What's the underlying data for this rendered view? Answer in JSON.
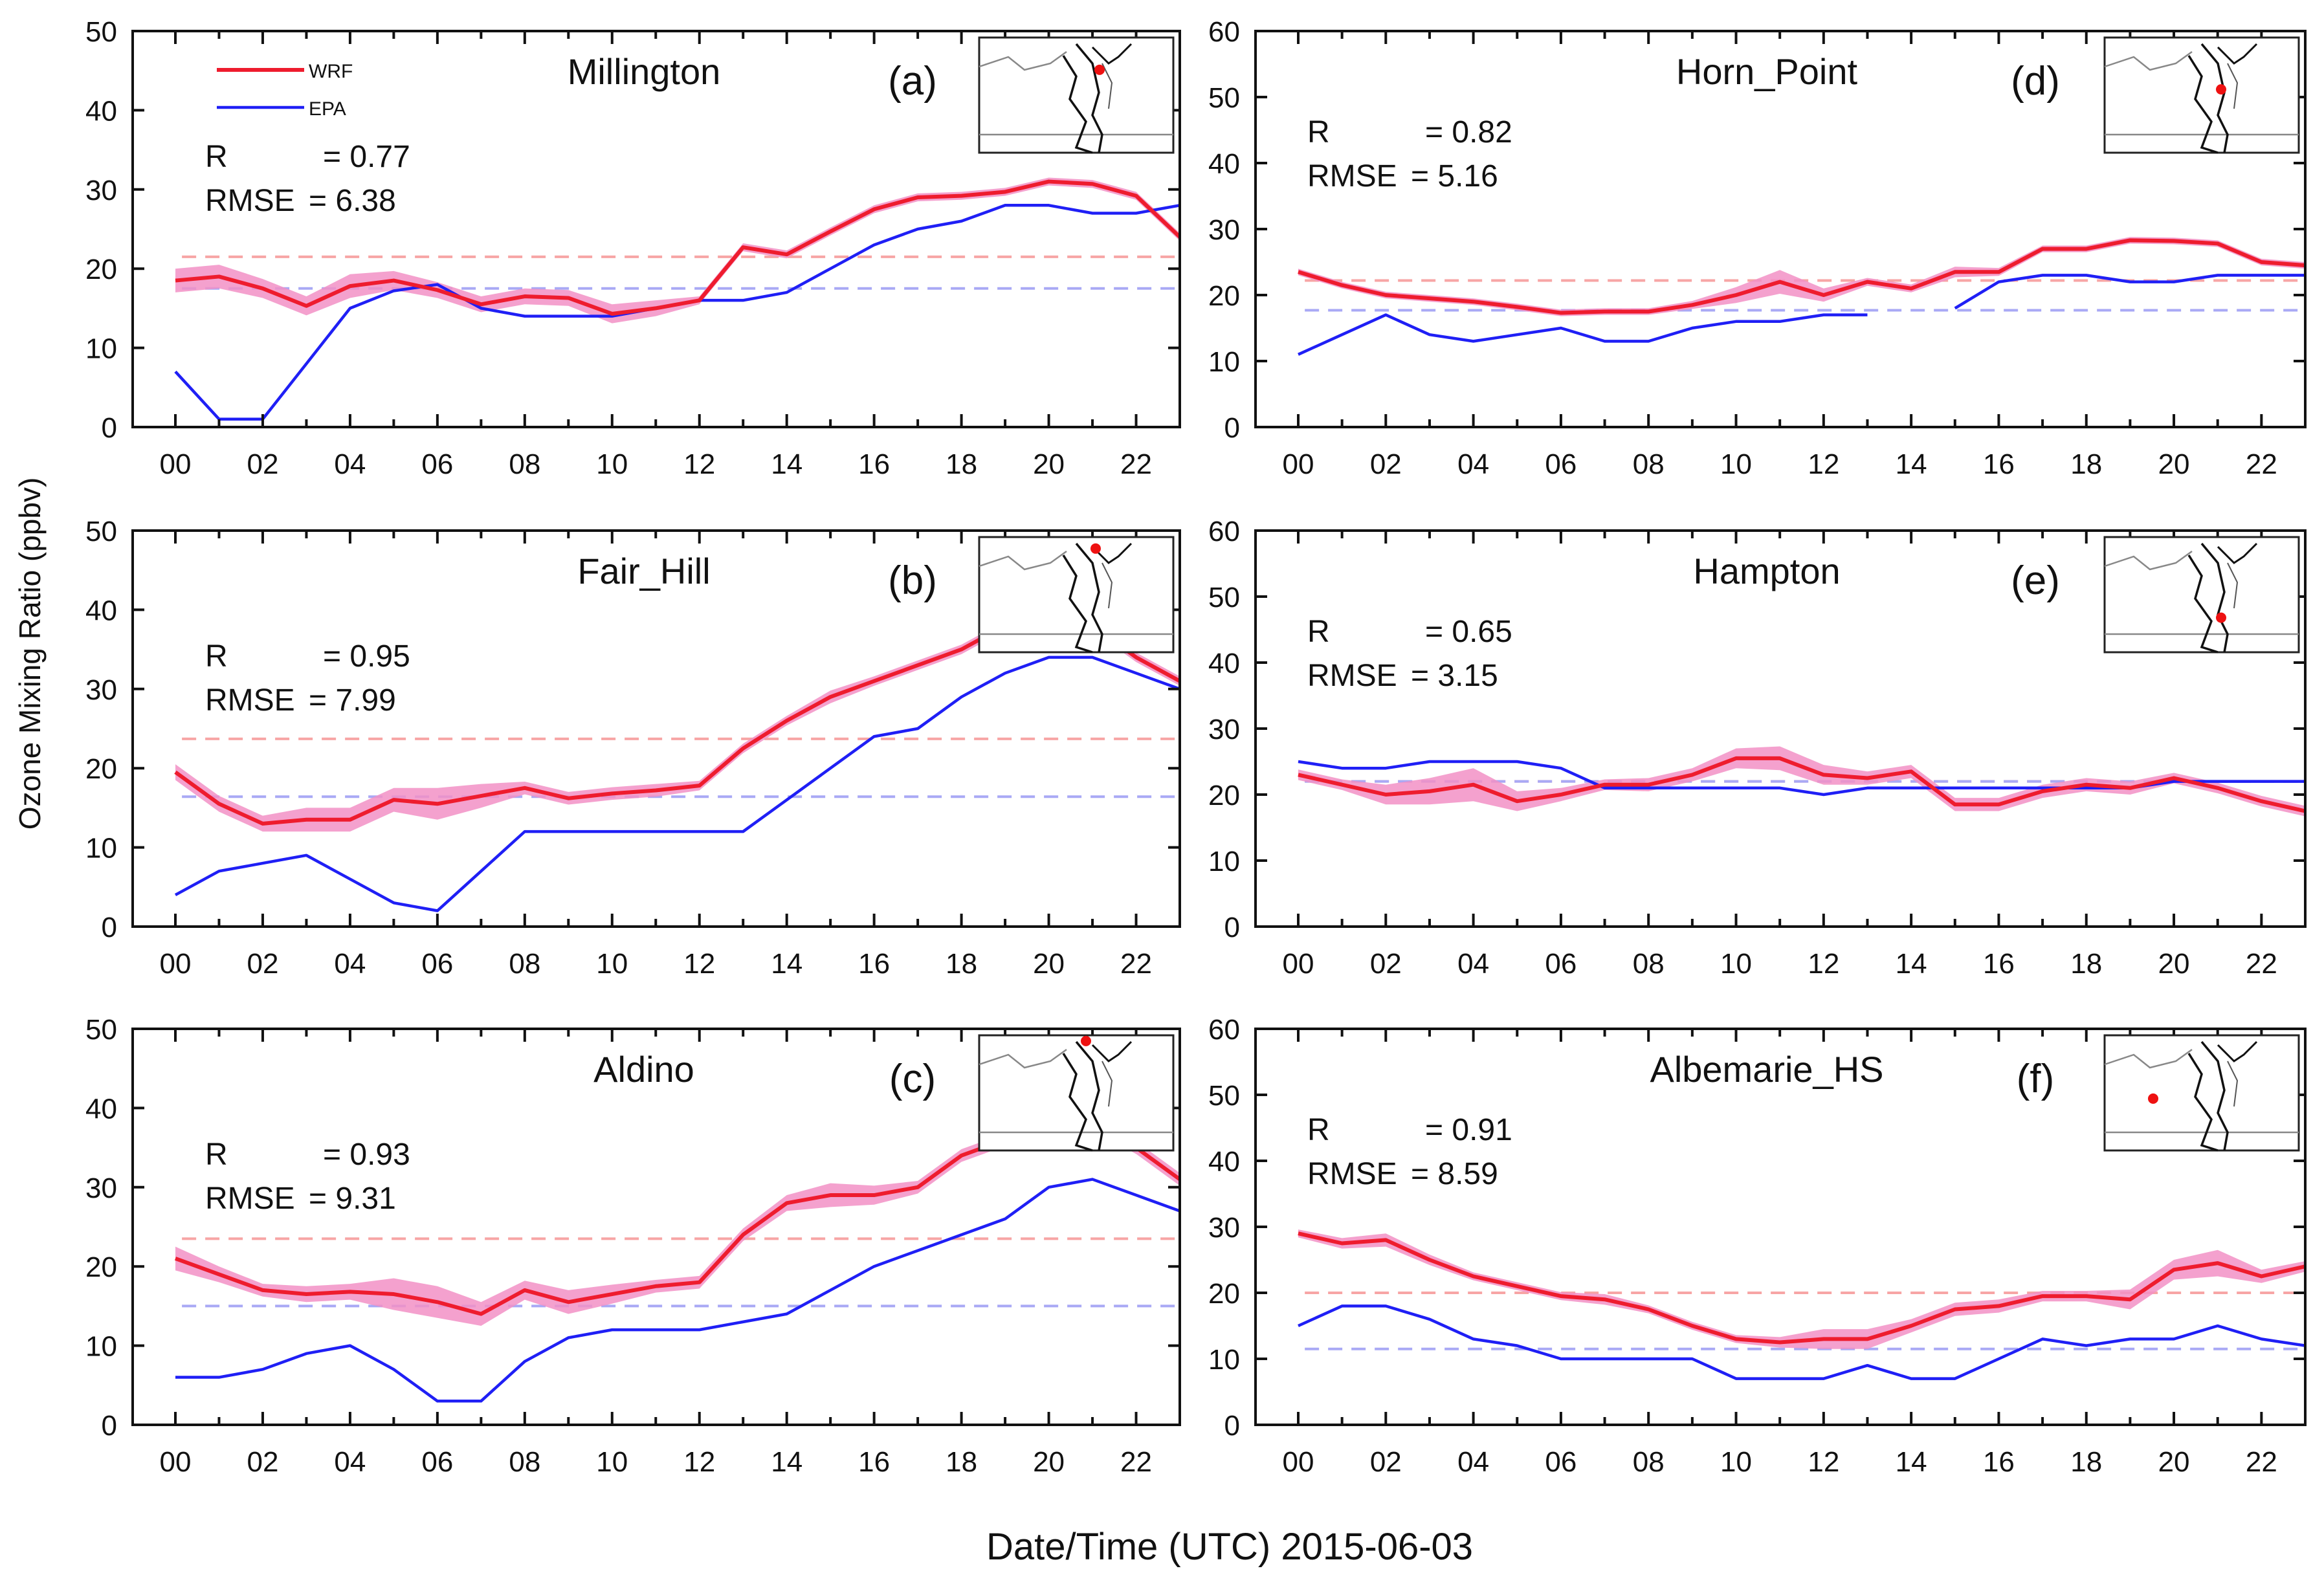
{
  "figure": {
    "ylabel": "Ozone Mixing Ratio (ppbv)",
    "xlabel": "Date/Time (UTC) 2015-06-03",
    "legend": [
      "WRF",
      "EPA"
    ]
  },
  "colors": {
    "wrf": "#ee1c2e",
    "wrf_band": "#f291c6",
    "epa": "#1f1ff5",
    "wrf_mean": "#f7a5a5",
    "epa_mean": "#a9a9f5",
    "map_marker": "#ee1111"
  },
  "chart_data": [
    {
      "type": "line",
      "site": "Millington",
      "panel": "(a)",
      "r_label": "R",
      "r_value": "= 0.77",
      "rmse_label": "RMSE",
      "rmse_value": "= 6.38",
      "ylim": [
        0,
        50
      ],
      "yticks": [
        0,
        10,
        20,
        30,
        40,
        50
      ],
      "xticks": [
        "00",
        "02",
        "04",
        "06",
        "08",
        "10",
        "12",
        "14",
        "16",
        "18",
        "20",
        "22"
      ],
      "x": [
        0,
        1,
        2,
        3,
        4,
        5,
        6,
        7,
        8,
        9,
        10,
        11,
        12,
        13,
        14,
        15,
        16,
        17,
        18,
        19,
        20,
        21,
        22,
        23
      ],
      "series": [
        {
          "name": "WRF",
          "values": [
            18.5,
            19,
            17.5,
            15.3,
            17.8,
            18.5,
            17.3,
            15.5,
            16.5,
            16.3,
            14.3,
            15,
            16,
            22.7,
            21.8,
            24.7,
            27.5,
            29,
            29.2,
            29.7,
            31,
            30.7,
            29.2,
            24
          ]
        },
        {
          "name": "EPA",
          "values": [
            7,
            1,
            1,
            8,
            15,
            17.2,
            18,
            15,
            14,
            14,
            14,
            15,
            16,
            16,
            17,
            20,
            23,
            25,
            26,
            28,
            28,
            27,
            27,
            28
          ]
        }
      ],
      "wrf_spread": [
        1.5,
        1.5,
        1.2,
        1.2,
        1.5,
        1.2,
        1,
        1,
        1,
        1,
        1.2,
        1,
        0.5,
        0.5,
        0.5,
        0.5,
        0.5,
        0.5,
        0.5,
        0.5,
        0.5,
        0.5,
        0.5,
        0.5
      ],
      "wrf_mean": 21.5,
      "epa_mean": 17.5,
      "marker": [
        0.62,
        0.28
      ]
    },
    {
      "type": "line",
      "site": "Fair_Hill",
      "panel": "(b)",
      "r_label": "R",
      "r_value": "= 0.95",
      "rmse_label": "RMSE",
      "rmse_value": "= 7.99",
      "ylim": [
        0,
        50
      ],
      "yticks": [
        0,
        10,
        20,
        30,
        40,
        50
      ],
      "xticks": [
        "00",
        "02",
        "04",
        "06",
        "08",
        "10",
        "12",
        "14",
        "16",
        "18",
        "20",
        "22"
      ],
      "x": [
        0,
        1,
        2,
        3,
        4,
        5,
        6,
        7,
        8,
        9,
        10,
        11,
        12,
        13,
        14,
        15,
        16,
        17,
        18,
        19,
        20,
        21,
        22,
        23
      ],
      "series": [
        {
          "name": "WRF",
          "values": [
            19.5,
            15.5,
            13,
            13.5,
            13.5,
            16,
            15.5,
            16.5,
            17.5,
            16.2,
            16.8,
            17.2,
            17.8,
            22.5,
            26,
            29,
            31,
            33,
            35,
            38,
            39,
            38,
            34,
            31
          ]
        },
        {
          "name": "EPA",
          "values": [
            4,
            7,
            8,
            9,
            6,
            3,
            2,
            7,
            12,
            12,
            12,
            12,
            12,
            12,
            16,
            20,
            24,
            25,
            29,
            32,
            34,
            34,
            32,
            30
          ]
        }
      ],
      "wrf_spread": [
        1,
        1,
        1,
        1.5,
        1.5,
        1.5,
        2,
        1.5,
        0.8,
        0.8,
        0.8,
        0.8,
        0.6,
        0.6,
        0.6,
        0.8,
        0.6,
        0.6,
        0.6,
        0.6,
        0.6,
        0.6,
        0.6,
        0.6
      ],
      "wrf_mean": 23.7,
      "epa_mean": 16.4,
      "marker": [
        0.6,
        0.1
      ]
    },
    {
      "type": "line",
      "site": "Aldino",
      "panel": "(c)",
      "r_label": "R",
      "r_value": "= 0.93",
      "rmse_label": "RMSE",
      "rmse_value": "= 9.31",
      "ylim": [
        0,
        50
      ],
      "yticks": [
        0,
        10,
        20,
        30,
        40,
        50
      ],
      "xticks": [
        "00",
        "02",
        "04",
        "06",
        "08",
        "10",
        "12",
        "14",
        "16",
        "18",
        "20",
        "22"
      ],
      "x": [
        0,
        1,
        2,
        3,
        4,
        5,
        6,
        7,
        8,
        9,
        10,
        11,
        12,
        13,
        14,
        15,
        16,
        17,
        18,
        19,
        20,
        21,
        22,
        23
      ],
      "series": [
        {
          "name": "WRF",
          "values": [
            21,
            19,
            17,
            16.5,
            16.8,
            16.5,
            15.5,
            14,
            17,
            15.5,
            16.5,
            17.5,
            18,
            24,
            28,
            29,
            29,
            30,
            34,
            36,
            37,
            38,
            35,
            31
          ]
        },
        {
          "name": "EPA",
          "values": [
            6,
            6,
            7,
            9,
            10,
            7,
            3,
            3,
            8,
            11,
            12,
            12,
            12,
            13,
            14,
            17,
            20,
            22,
            24,
            26,
            30,
            31,
            29,
            27
          ]
        }
      ],
      "wrf_spread": [
        1.5,
        1,
        0.8,
        1,
        1,
        2,
        2,
        1.5,
        1.2,
        1.5,
        1.2,
        0.8,
        0.8,
        0.8,
        1,
        1.5,
        1.2,
        0.8,
        0.8,
        0.8,
        0.8,
        0.8,
        0.8,
        0.8
      ],
      "wrf_mean": 23.5,
      "epa_mean": 15,
      "marker": [
        0.55,
        0.05
      ]
    },
    {
      "type": "line",
      "site": "Horn_Point",
      "panel": "(d)",
      "r_label": "R",
      "r_value": "= 0.82",
      "rmse_label": "RMSE",
      "rmse_value": "= 5.16",
      "ylim": [
        0,
        60
      ],
      "yticks": [
        0,
        10,
        20,
        30,
        40,
        50,
        60
      ],
      "xticks": [
        "00",
        "02",
        "04",
        "06",
        "08",
        "10",
        "12",
        "14",
        "16",
        "18",
        "20",
        "22"
      ],
      "x": [
        0,
        1,
        2,
        3,
        4,
        5,
        6,
        7,
        8,
        9,
        10,
        11,
        12,
        13,
        14,
        15,
        16,
        17,
        18,
        19,
        20,
        21,
        22,
        23
      ],
      "series": [
        {
          "name": "WRF",
          "values": [
            23.5,
            21.5,
            20,
            19.5,
            19,
            18.2,
            17.3,
            17.5,
            17.5,
            18.5,
            20,
            22,
            20,
            22,
            21,
            23.5,
            23.5,
            27,
            27,
            28.3,
            28.2,
            27.8,
            25,
            24.5
          ]
        },
        {
          "name": "EPA",
          "values": [
            11,
            14,
            17,
            14,
            13,
            14,
            15,
            13,
            13,
            15,
            16,
            16,
            17,
            17,
            null,
            18,
            22,
            23,
            23,
            22,
            22,
            23,
            23,
            23
          ]
        }
      ],
      "wrf_spread": [
        0.5,
        0.5,
        0.5,
        0.5,
        0.5,
        0.5,
        0.5,
        0.5,
        0.5,
        0.6,
        1.2,
        1.8,
        1,
        0.6,
        0.6,
        0.8,
        0.6,
        0.5,
        0.5,
        0.5,
        0.5,
        0.5,
        0.5,
        0.5
      ],
      "wrf_mean": 22.2,
      "epa_mean": 17.7,
      "marker": [
        0.6,
        0.45
      ]
    },
    {
      "type": "line",
      "site": "Hampton",
      "panel": "(e)",
      "r_label": "R",
      "r_value": "= 0.65",
      "rmse_label": "RMSE",
      "rmse_value": "= 3.15",
      "ylim": [
        0,
        60
      ],
      "yticks": [
        0,
        10,
        20,
        30,
        40,
        50,
        60
      ],
      "xticks": [
        "00",
        "02",
        "04",
        "06",
        "08",
        "10",
        "12",
        "14",
        "16",
        "18",
        "20",
        "22"
      ],
      "x": [
        0,
        1,
        2,
        3,
        4,
        5,
        6,
        7,
        8,
        9,
        10,
        11,
        12,
        13,
        14,
        15,
        16,
        17,
        18,
        19,
        20,
        21,
        22,
        23
      ],
      "series": [
        {
          "name": "WRF",
          "values": [
            23,
            21.5,
            20,
            20.5,
            21.5,
            19,
            20,
            21.5,
            21.5,
            23,
            25.5,
            25.5,
            23,
            22.5,
            23.5,
            18.5,
            18.5,
            20.5,
            21.5,
            21,
            22.5,
            21,
            19,
            17.5
          ]
        },
        {
          "name": "EPA",
          "values": [
            25,
            24,
            24,
            25,
            25,
            25,
            24,
            21,
            21,
            21,
            21,
            21,
            20,
            21,
            21,
            21,
            21,
            21,
            21,
            21,
            22,
            22,
            22,
            22
          ]
        }
      ],
      "wrf_spread": [
        0.8,
        0.8,
        1.5,
        2,
        2.5,
        1.5,
        1,
        0.8,
        1,
        1,
        1.5,
        1.8,
        1.5,
        1,
        1,
        1,
        1,
        1,
        1,
        1,
        0.8,
        0.8,
        0.8,
        0.8
      ],
      "wrf_mean": 22,
      "epa_mean": 22,
      "marker": [
        0.6,
        0.7
      ]
    },
    {
      "type": "line",
      "site": "Albemarie_HS",
      "panel": "(f)",
      "r_label": "R",
      "r_value": "= 0.91",
      "rmse_label": "RMSE",
      "rmse_value": "= 8.59",
      "ylim": [
        0,
        60
      ],
      "yticks": [
        0,
        10,
        20,
        30,
        40,
        50,
        60
      ],
      "xticks": [
        "00",
        "02",
        "04",
        "06",
        "08",
        "10",
        "12",
        "14",
        "16",
        "18",
        "20",
        "22"
      ],
      "x": [
        0,
        1,
        2,
        3,
        4,
        5,
        6,
        7,
        8,
        9,
        10,
        11,
        12,
        13,
        14,
        15,
        16,
        17,
        18,
        19,
        20,
        21,
        22,
        23
      ],
      "series": [
        {
          "name": "WRF",
          "values": [
            29,
            27.5,
            28,
            25,
            22.5,
            21,
            19.5,
            19,
            17.5,
            15,
            13,
            12.5,
            13,
            13,
            15,
            17.5,
            18,
            19.5,
            19.5,
            19,
            23.5,
            24.5,
            22.5,
            24
          ]
        },
        {
          "name": "EPA",
          "values": [
            15,
            18,
            18,
            16,
            13,
            12,
            10,
            10,
            10,
            10,
            7,
            7,
            7,
            9,
            7,
            7,
            10,
            13,
            12,
            13,
            13,
            15,
            13,
            12
          ]
        }
      ],
      "wrf_spread": [
        0.6,
        0.8,
        1,
        0.8,
        0.6,
        0.6,
        0.6,
        0.8,
        0.6,
        0.6,
        0.6,
        0.8,
        1.5,
        1.5,
        1,
        1,
        1,
        0.8,
        0.8,
        1.5,
        1.5,
        2,
        1,
        0.8
      ],
      "wrf_mean": 20,
      "epa_mean": 11.5,
      "marker": [
        0.25,
        0.55
      ]
    }
  ]
}
